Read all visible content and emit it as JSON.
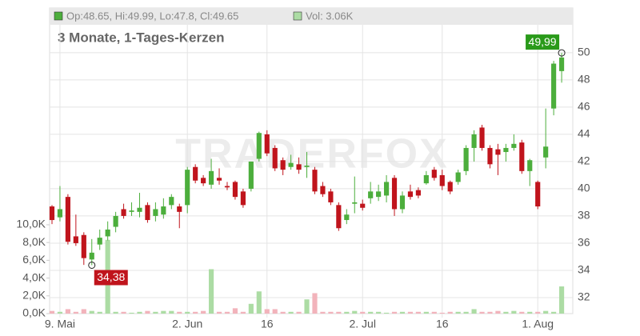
{
  "chart_data": {
    "type": "candlestick",
    "title": "3 Monate, 1-Tages-Kerzen",
    "legend": {
      "ohlc": "Op:48.65, Hi:49.99, Lo:47.8, Cl:49.65",
      "volume": "Vol: 3.06K"
    },
    "watermark": "TRADERFOX",
    "up_color": "#4cae3c",
    "down_color": "#c0141c",
    "volume_up_color": "#acdca4",
    "volume_down_color": "#f2b3bb",
    "x": [
      0,
      1,
      2,
      3,
      4,
      5,
      6,
      7,
      8,
      9,
      10,
      11,
      12,
      13,
      14,
      15,
      16,
      17,
      18,
      19,
      20,
      21,
      22,
      23,
      24,
      25,
      26,
      27,
      28,
      29,
      30,
      31,
      32,
      33,
      34,
      35,
      36,
      37,
      38,
      39,
      40,
      41,
      42,
      43,
      44,
      45,
      46,
      47,
      48,
      49,
      50,
      51,
      52,
      53,
      54,
      55,
      56,
      57,
      58,
      59,
      60,
      61,
      62,
      63,
      64
    ],
    "open": [
      38.7,
      37.9,
      39.4,
      36.5,
      36.6,
      34.8,
      35.9,
      36.5,
      37.2,
      38.5,
      38.3,
      38.3,
      38.8,
      38.0,
      38.1,
      38.8,
      38.7,
      38.8,
      41.6,
      40.8,
      40.3,
      40.8,
      40.2,
      40.5,
      39.8,
      40.0,
      42.2,
      44.0,
      43.0,
      42.1,
      41.6,
      41.8,
      41.6,
      41.4,
      40.2,
      39.8,
      38.8,
      37.7,
      38.9,
      38.9,
      39.3,
      39.4,
      39.5,
      40.8,
      38.5,
      39.8,
      39.9,
      40.4,
      41.4,
      41.0,
      40.5,
      40.5,
      41.3,
      43.0,
      44.5,
      43.0,
      42.9,
      42.7,
      43.0,
      43.4,
      41.3,
      40.5,
      42.3,
      45.9,
      48.65
    ],
    "high": [
      38.8,
      40.2,
      39.6,
      38.1,
      36.8,
      36.3,
      37.0,
      37.6,
      38.3,
      38.9,
      39.0,
      39.7,
      39.0,
      39.0,
      39.3,
      39.6,
      38.9,
      41.6,
      41.8,
      41.0,
      42.2,
      41.5,
      40.5,
      40.6,
      40.0,
      42.0,
      44.2,
      44.3,
      43.2,
      42.3,
      42.5,
      42.3,
      42.7,
      41.6,
      40.5,
      40.0,
      39.0,
      38.5,
      40.9,
      39.2,
      40.5,
      40.3,
      41.0,
      41.0,
      39.8,
      40.3,
      40.1,
      41.3,
      41.6,
      41.4,
      40.6,
      41.4,
      43.2,
      44.3,
      44.7,
      43.2,
      43.3,
      43.3,
      44.0,
      43.6,
      42.2,
      40.6,
      45.9,
      49.4,
      49.99
    ],
    "low": [
      37.4,
      37.6,
      35.9,
      35.8,
      34.4,
      34.38,
      35.5,
      36.2,
      36.8,
      37.8,
      38.0,
      37.9,
      37.5,
      37.6,
      37.8,
      38.5,
      37.1,
      38.2,
      40.4,
      40.2,
      40.0,
      40.3,
      39.9,
      39.2,
      38.6,
      39.8,
      42.0,
      42.4,
      41.3,
      41.0,
      41.4,
      41.1,
      40.8,
      39.6,
      39.4,
      38.8,
      36.9,
      37.4,
      38.2,
      38.4,
      38.9,
      39.1,
      39.0,
      38.0,
      38.2,
      39.2,
      39.3,
      40.3,
      40.6,
      39.9,
      39.6,
      40.3,
      41.0,
      42.0,
      42.8,
      41.5,
      41.0,
      42.0,
      42.8,
      41.1,
      40.2,
      38.5,
      41.5,
      45.4,
      47.8
    ],
    "close": [
      37.7,
      38.5,
      36.1,
      36.0,
      34.9,
      35.3,
      36.4,
      37.0,
      38.0,
      38.0,
      38.4,
      38.6,
      37.7,
      38.5,
      38.7,
      39.4,
      38.3,
      41.4,
      40.6,
      40.4,
      41.3,
      40.6,
      40.1,
      39.4,
      38.8,
      42.0,
      44.1,
      42.6,
      41.5,
      41.4,
      41.9,
      41.4,
      41.7,
      39.8,
      39.6,
      39.0,
      37.1,
      38.1,
      39.0,
      38.6,
      39.8,
      39.8,
      40.5,
      38.5,
      39.5,
      39.4,
      39.5,
      41.0,
      40.8,
      40.2,
      39.8,
      41.2,
      43.0,
      44.0,
      43.0,
      41.8,
      42.5,
      43.0,
      43.3,
      41.3,
      42.1,
      38.7,
      43.1,
      49.2,
      49.65
    ],
    "volume": [
      300,
      200,
      500,
      200,
      500,
      300,
      200,
      8300,
      200,
      200,
      100,
      200,
      300,
      200,
      300,
      300,
      200,
      200,
      200,
      300,
      5000,
      200,
      200,
      600,
      200,
      1100,
      2500,
      500,
      500,
      200,
      200,
      200,
      1600,
      2300,
      200,
      200,
      200,
      200,
      300,
      200,
      200,
      200,
      100,
      200,
      200,
      200,
      200,
      200,
      200,
      100,
      200,
      200,
      200,
      500,
      200,
      200,
      300,
      200,
      300,
      200,
      200,
      200,
      300,
      200,
      3060
    ],
    "annotations": [
      {
        "x": 64,
        "value": 49.99,
        "label": "49,99"
      },
      {
        "x": 5,
        "value": 34.38,
        "label": "34,38"
      }
    ],
    "xlim": [
      -0.3,
      65.4
    ],
    "xticks": [
      {
        "value": 1,
        "label": "9. Mai"
      },
      {
        "value": 17,
        "label": "2. Jun"
      },
      {
        "value": 27,
        "label": "16"
      },
      {
        "value": 39,
        "label": "2. Jul"
      },
      {
        "value": 49,
        "label": "16"
      },
      {
        "value": 61,
        "label": "1. Aug"
      }
    ],
    "ylim": [
      30.82,
      53.29
    ],
    "yticks": [
      32,
      34,
      36,
      38,
      40,
      42,
      44,
      46,
      48,
      50
    ],
    "y2lim": [
      0,
      34400
    ],
    "y2ticks": [
      {
        "value": 0,
        "label": "0,0K"
      },
      {
        "value": 2000,
        "label": "2,0K"
      },
      {
        "value": 4000,
        "label": "4,0K"
      },
      {
        "value": 6000,
        "label": "6,0K"
      },
      {
        "value": 8000,
        "label": "8,0K"
      },
      {
        "value": 10000,
        "label": "10,0K"
      }
    ],
    "grid": true
  }
}
